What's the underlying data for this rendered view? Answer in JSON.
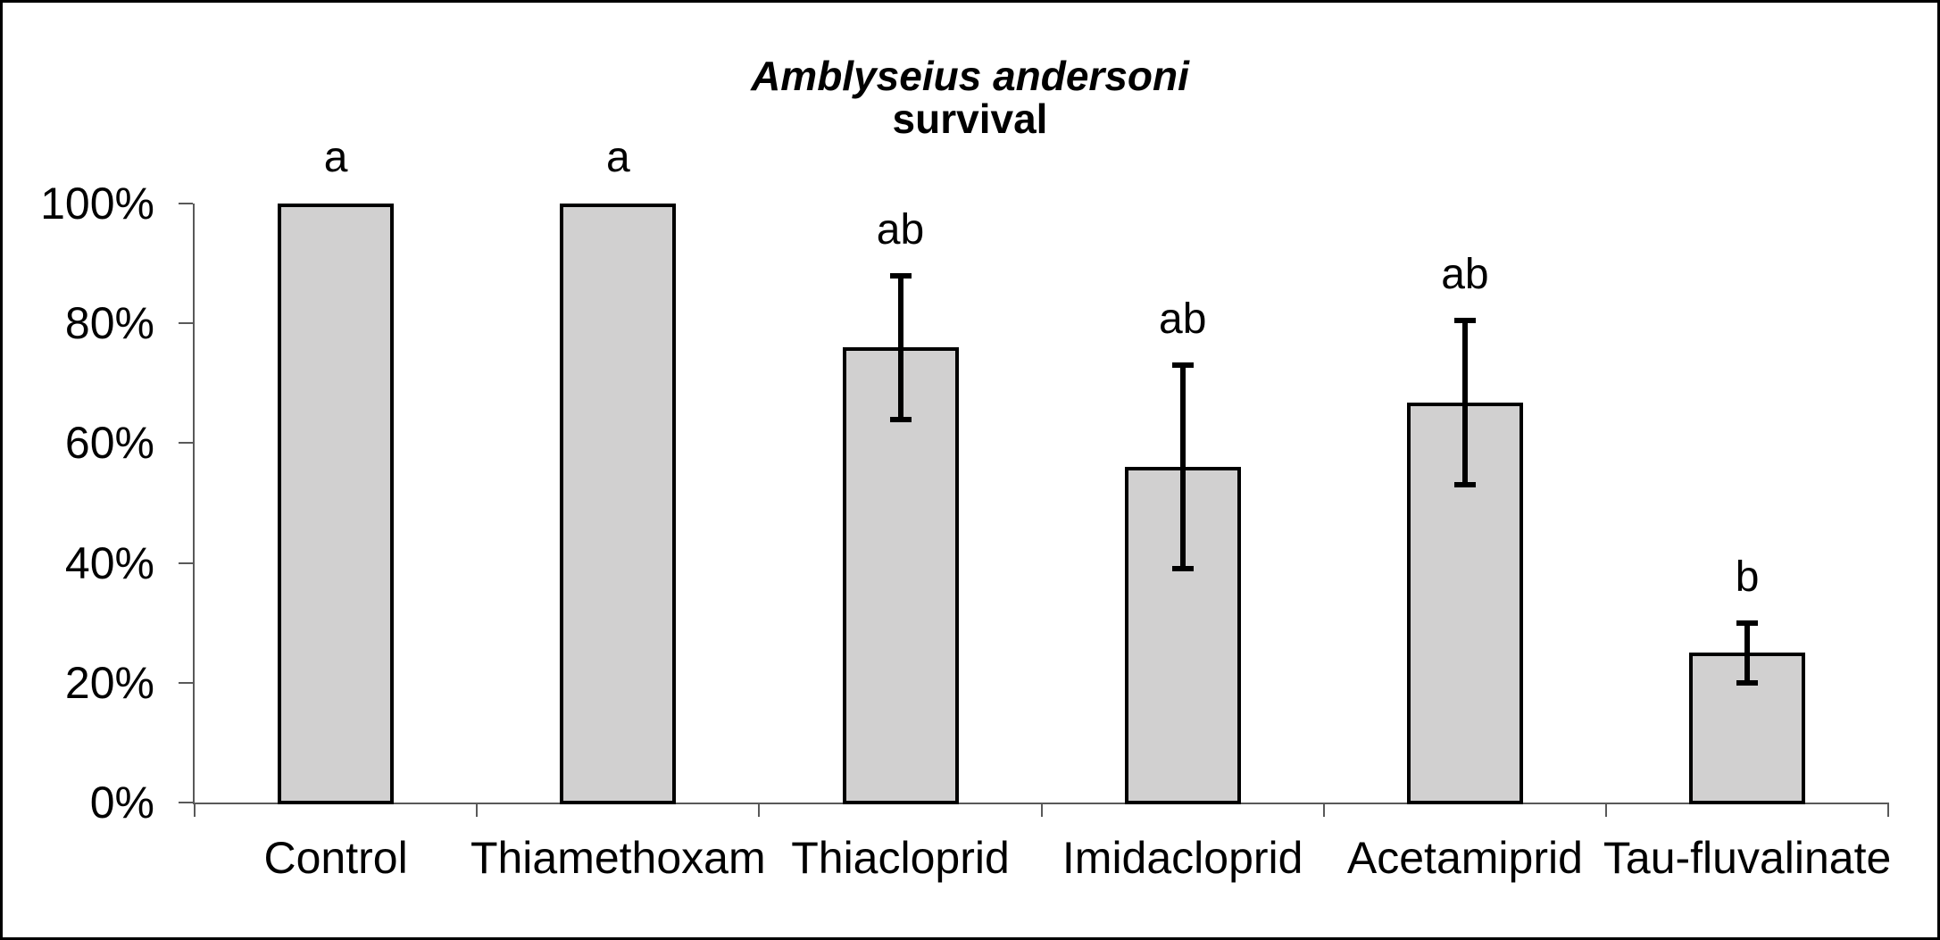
{
  "title": {
    "line1": "Amblyseius andersoni",
    "line2": "survival"
  },
  "chart_data": {
    "type": "bar",
    "title": "Amblyseius andersoni survival",
    "categories": [
      "Control",
      "Thiamethoxam",
      "Thiacloprid",
      "Imidacloprid",
      "Acetamiprid",
      "Tau-fluvalinate"
    ],
    "values": [
      100,
      100,
      76,
      56,
      66.7,
      25
    ],
    "error_bars": {
      "low": [
        null,
        null,
        64,
        39,
        53,
        20
      ],
      "high": [
        null,
        null,
        88,
        73,
        80.5,
        30
      ]
    },
    "significance_letters": [
      "a",
      "a",
      "ab",
      "ab",
      "ab",
      "b"
    ],
    "xlabel": "",
    "ylabel": "",
    "ylim": [
      0,
      100
    ],
    "yticks": [
      0,
      20,
      40,
      60,
      80,
      100
    ],
    "ytick_labels": [
      "0%",
      "20%",
      "40%",
      "60%",
      "80%",
      "100%"
    ],
    "grid": false,
    "legend": "none",
    "colors": {
      "bar_fill": "#d1d0d0",
      "bar_border": "#000000",
      "error_bar": "#000000",
      "axis": "#595959",
      "text": "#000000",
      "background": "#ffffff",
      "frame": "#000000"
    }
  }
}
